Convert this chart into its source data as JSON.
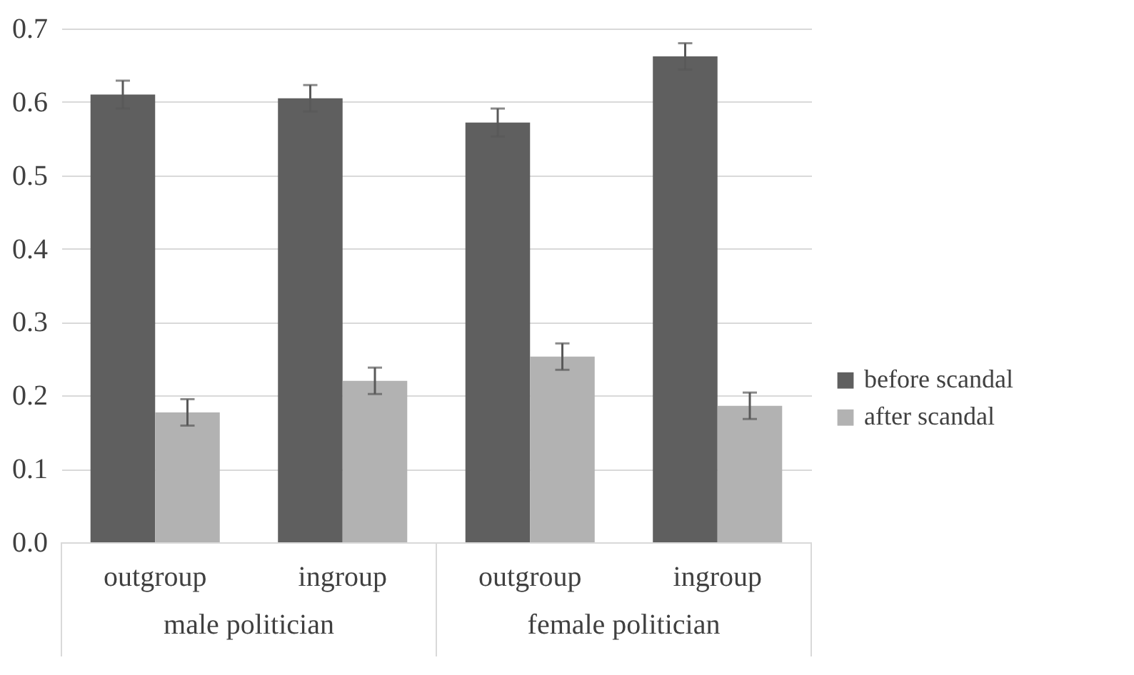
{
  "chart_data": {
    "type": "bar",
    "categories": [
      "outgroup",
      "ingroup",
      "outgroup",
      "ingroup"
    ],
    "series": [
      {
        "name": "before scandal",
        "color": "#5f5f5f",
        "values": [
          0.61,
          0.605,
          0.572,
          0.662
        ],
        "errors": [
          0.019,
          0.018,
          0.019,
          0.018
        ]
      },
      {
        "name": "after scandal",
        "color": "#b2b2b2",
        "values": [
          0.177,
          0.22,
          0.253,
          0.186
        ],
        "errors": [
          0.018,
          0.018,
          0.018,
          0.018
        ]
      }
    ],
    "annotations": [
      "male politician",
      "female politician"
    ],
    "ylim": [
      0,
      0.7
    ],
    "yticks": [
      {
        "value": 0,
        "label": "0.0"
      },
      0.1,
      0.2,
      0.3,
      0.4,
      0.5,
      0.6,
      0.7
    ],
    "grid": true,
    "legend": "right"
  }
}
